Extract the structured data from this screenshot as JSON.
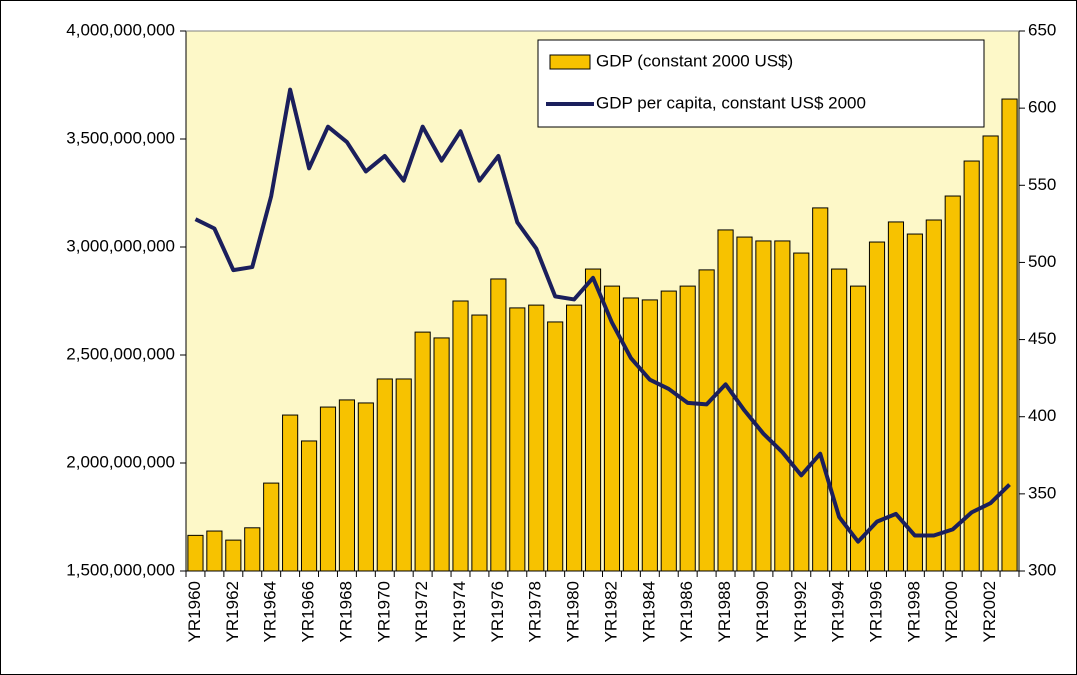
{
  "chart_data": {
    "type": "bar-line",
    "categories": [
      "YR1960",
      null,
      "YR1962",
      null,
      "YR1964",
      null,
      "YR1966",
      null,
      "YR1968",
      null,
      "YR1970",
      null,
      "YR1972",
      null,
      "YR1974",
      null,
      "YR1976",
      null,
      "YR1978",
      null,
      "YR1980",
      null,
      "YR1982",
      null,
      "YR1984",
      null,
      "YR1986",
      null,
      "YR1988",
      null,
      "YR1990",
      null,
      "YR1992",
      null,
      "YR1994",
      null,
      "YR1996",
      null,
      "YR1998",
      null,
      "YR2000",
      null,
      "YR2002",
      null
    ],
    "series": [
      {
        "name": "GDP (constant 2000 US$)",
        "type": "bar",
        "color": "#f7c200",
        "values": [
          1665000000,
          1685000000,
          1643000000,
          1700000000,
          1907000000,
          2222000000,
          2102000000,
          2259000000,
          2292000000,
          2278000000,
          2389000000,
          2389000000,
          2606000000,
          2579000000,
          2750000000,
          2685000000,
          2852000000,
          2718000000,
          2731000000,
          2653000000,
          2731000000,
          2898000000,
          2819000000,
          2764000000,
          2755000000,
          2796000000,
          2819000000,
          2894000000,
          3079000000,
          3046000000,
          3028000000,
          3028000000,
          2972000000,
          3181000000,
          2898000000,
          2819000000,
          3023000000,
          3116000000,
          3060000000,
          3125000000,
          3236000000,
          3398000000,
          3514000000,
          3685000000
        ]
      },
      {
        "name": "GDP per capita, constant US$ 2000",
        "type": "line",
        "axis": "y2",
        "color": "#1b1f5c",
        "values": [
          528,
          522,
          495,
          497,
          543,
          612,
          561,
          588,
          578,
          559,
          569,
          553,
          588,
          566,
          585,
          553,
          569,
          526,
          509,
          478,
          476,
          490,
          461,
          438,
          424,
          418,
          409,
          408,
          421,
          404,
          389,
          377,
          362,
          376,
          335,
          319,
          332,
          337,
          323,
          323,
          327,
          338,
          344,
          356
        ]
      }
    ],
    "ylim": [
      1500000000,
      4000000000
    ],
    "yticks": [
      {
        "value": 1500000000,
        "label": "1,500,000,000"
      },
      {
        "value": 2000000000,
        "label": "2,000,000,000"
      },
      {
        "value": 2500000000,
        "label": "2,500,000,000"
      },
      {
        "value": 3000000000,
        "label": "3,000,000,000"
      },
      {
        "value": 3500000000,
        "label": "3,500,000,000"
      },
      {
        "value": 4000000000,
        "label": "4,000,000,000"
      }
    ],
    "y2lim": [
      300,
      650
    ],
    "y2ticks": [
      300,
      350,
      400,
      450,
      500,
      550,
      600,
      650
    ],
    "legend": "top-right",
    "plot_background": "#fdf8c8"
  }
}
